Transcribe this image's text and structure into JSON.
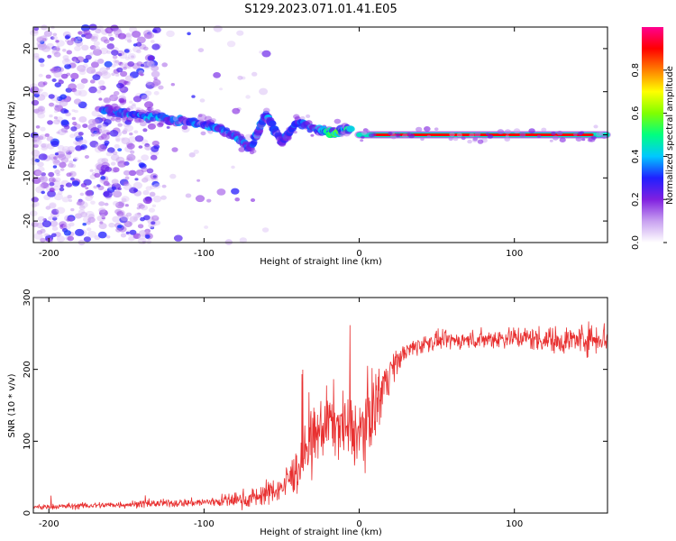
{
  "title": "S129.2023.071.01.41.E05",
  "chart_data": [
    {
      "type": "heatmap",
      "title": "S129.2023.071.01.41.E05",
      "xlabel": "Height of straight line (km)",
      "ylabel": "Frequency (Hz)",
      "xlim": [
        -210,
        160
      ],
      "ylim": [
        -25,
        25
      ],
      "xticks": [
        -200,
        -100,
        0,
        100
      ],
      "yticks": [
        -20,
        -10,
        0,
        10,
        20
      ],
      "colorbar": {
        "label": "Normalized spectral amplitude",
        "range": [
          0.0,
          1.0
        ],
        "ticks": [
          0.0,
          0.2,
          0.4,
          0.6,
          0.8
        ],
        "colors": [
          "#ffffff",
          "#c8a0f0",
          "#8020e0",
          "#2020ff",
          "#00c8ff",
          "#00ff80",
          "#80ff00",
          "#ffff00",
          "#ff8000",
          "#ff0000",
          "#ff0090"
        ]
      },
      "features": {
        "noise_region_x": [
          -210,
          -130
        ],
        "descending_trace": [
          {
            "x": -165,
            "freq": 6,
            "amp": 0.3
          },
          {
            "x": -150,
            "freq": 5,
            "amp": 0.35
          },
          {
            "x": -130,
            "freq": 4,
            "amp": 0.35
          },
          {
            "x": -110,
            "freq": 3,
            "amp": 0.3
          },
          {
            "x": -95,
            "freq": 2,
            "amp": 0.35
          },
          {
            "x": -80,
            "freq": 0,
            "amp": 0.35
          },
          {
            "x": -70,
            "freq": -3,
            "amp": 0.3
          },
          {
            "x": -60,
            "freq": 5,
            "amp": 0.35
          },
          {
            "x": -50,
            "freq": -2,
            "amp": 0.3
          },
          {
            "x": -40,
            "freq": 3,
            "amp": 0.3
          },
          {
            "x": -25,
            "freq": 1,
            "amp": 0.35
          },
          {
            "x": -15,
            "freq": 0.5,
            "amp": 0.5
          },
          {
            "x": -5,
            "freq": 1.5,
            "amp": 0.4
          }
        ],
        "flat_trace": {
          "x_start": 0,
          "x_end": 160,
          "freq": 0,
          "amp": 0.9
        }
      }
    },
    {
      "type": "line",
      "xlabel": "Height of straight line (km)",
      "ylabel": "SNR (10 * v/v)",
      "xlim": [
        -210,
        160
      ],
      "ylim": [
        0,
        300
      ],
      "xticks": [
        -200,
        -100,
        0,
        100
      ],
      "yticks": [
        0,
        100,
        200,
        300
      ],
      "line_color": "#e83030",
      "envelope": {
        "x": [
          -210,
          -150,
          -100,
          -70,
          -50,
          -40,
          -30,
          -20,
          -10,
          0,
          10,
          20,
          30,
          40,
          50,
          60,
          80,
          100,
          130,
          160
        ],
        "y": [
          8,
          12,
          15,
          20,
          35,
          60,
          100,
          130,
          120,
          110,
          150,
          200,
          225,
          235,
          240,
          240,
          242,
          245,
          240,
          245
        ]
      },
      "noise_amplitude": [
        [
          -210,
          5
        ],
        [
          -100,
          8
        ],
        [
          -50,
          25
        ],
        [
          -30,
          60
        ],
        [
          -10,
          60
        ],
        [
          10,
          70
        ],
        [
          25,
          20
        ],
        [
          60,
          15
        ],
        [
          130,
          25
        ],
        [
          160,
          30
        ]
      ]
    }
  ]
}
